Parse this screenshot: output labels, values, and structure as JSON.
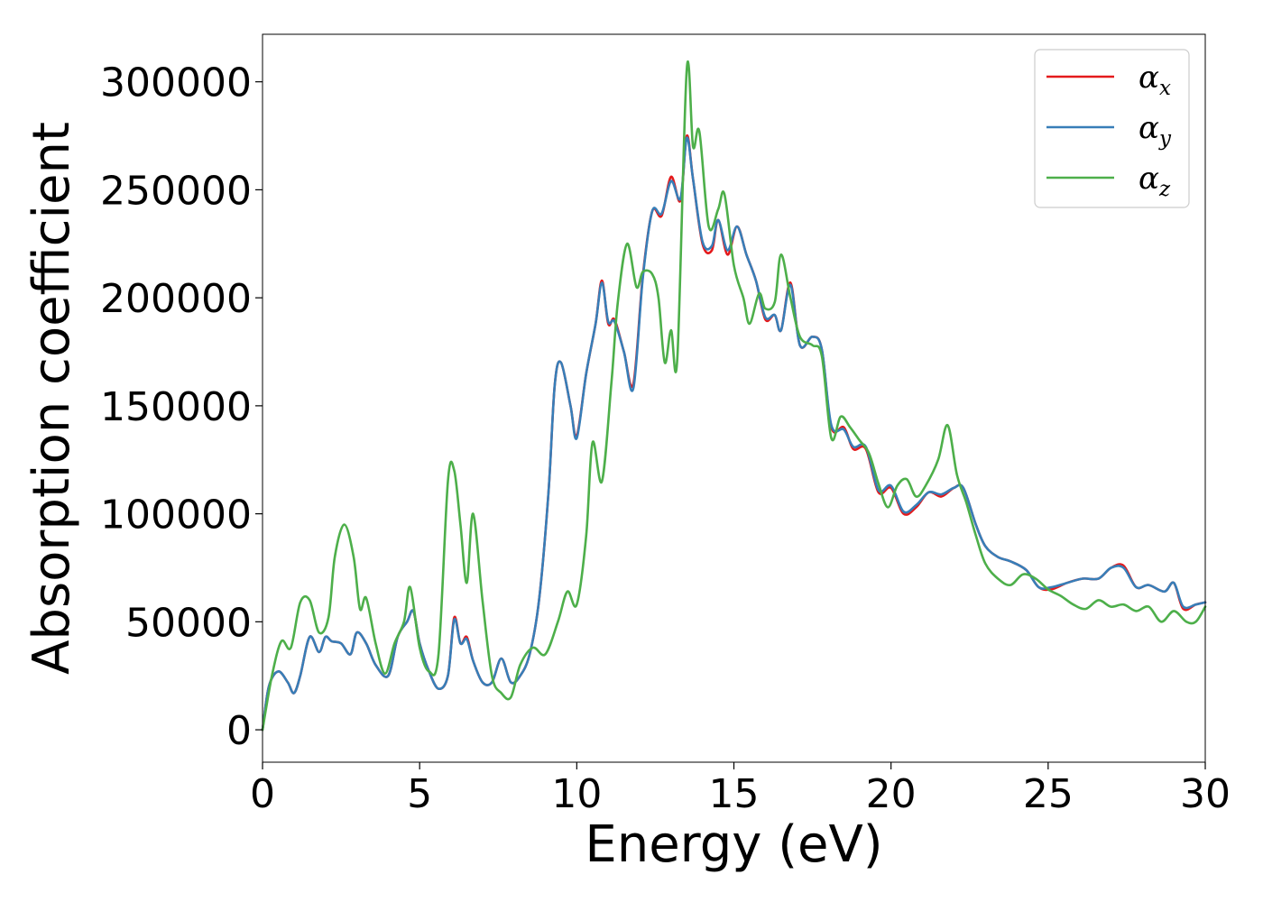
{
  "chart_data": {
    "type": "line",
    "xlabel": "Energy (eV)",
    "ylabel": "Absorption coefficient",
    "xlim": [
      0,
      30
    ],
    "ylim": [
      -15000,
      322000
    ],
    "x_ticks": [
      0,
      5,
      10,
      15,
      20,
      25,
      30
    ],
    "y_ticks": [
      0,
      50000,
      100000,
      150000,
      200000,
      250000,
      300000
    ],
    "grid": false,
    "legend_position": "top-right",
    "series": [
      {
        "name": "αx",
        "label_base": "α",
        "label_sub": "x",
        "color": "#e41a1c",
        "x": [
          0,
          0.2,
          0.5,
          0.8,
          1.0,
          1.2,
          1.5,
          1.8,
          2.0,
          2.2,
          2.5,
          2.8,
          3.0,
          3.3,
          3.6,
          4.0,
          4.3,
          4.6,
          4.8,
          5.0,
          5.3,
          5.6,
          5.9,
          6.1,
          6.3,
          6.5,
          6.7,
          7.0,
          7.3,
          7.6,
          7.9,
          8.2,
          8.5,
          8.8,
          9.1,
          9.3,
          9.5,
          9.8,
          10.0,
          10.3,
          10.6,
          10.8,
          11.0,
          11.2,
          11.5,
          11.8,
          12.1,
          12.4,
          12.7,
          13.0,
          13.3,
          13.5,
          13.7,
          14.0,
          14.3,
          14.5,
          14.8,
          15.1,
          15.4,
          15.7,
          16.0,
          16.3,
          16.5,
          16.8,
          17.1,
          17.5,
          17.8,
          18.1,
          18.5,
          18.8,
          19.2,
          19.6,
          20.0,
          20.4,
          20.8,
          21.2,
          21.6,
          22.0,
          22.3,
          22.7,
          23.0,
          23.4,
          23.8,
          24.3,
          24.7,
          25.1,
          25.6,
          26.1,
          26.6,
          27.0,
          27.4,
          27.8,
          28.2,
          28.7,
          29.0,
          29.3,
          29.7,
          30.0
        ],
        "values": [
          0,
          20000,
          27000,
          22000,
          17000,
          25000,
          43000,
          36000,
          43000,
          41000,
          40000,
          35000,
          45000,
          40000,
          30000,
          25000,
          43000,
          50000,
          55000,
          40000,
          27000,
          19000,
          25000,
          52000,
          40000,
          43000,
          32000,
          22000,
          22000,
          33000,
          22000,
          25000,
          35000,
          60000,
          110000,
          160000,
          170000,
          150000,
          136000,
          165000,
          188000,
          208000,
          188000,
          190000,
          175000,
          160000,
          210000,
          240000,
          238000,
          256000,
          245000,
          275000,
          255000,
          225000,
          222000,
          236000,
          220000,
          233000,
          220000,
          208000,
          190000,
          192000,
          185000,
          207000,
          178000,
          182000,
          176000,
          140000,
          140000,
          130000,
          130000,
          110000,
          112000,
          100000,
          103000,
          110000,
          108000,
          112000,
          112000,
          95000,
          85000,
          80000,
          78000,
          74000,
          66000,
          65000,
          68000,
          70000,
          70000,
          75000,
          76000,
          66000,
          67000,
          64000,
          68000,
          56000,
          58000,
          59000
        ]
      },
      {
        "name": "αy",
        "label_base": "α",
        "label_sub": "y",
        "color": "#377eb8",
        "x": [
          0,
          0.2,
          0.5,
          0.8,
          1.0,
          1.2,
          1.5,
          1.8,
          2.0,
          2.2,
          2.5,
          2.8,
          3.0,
          3.3,
          3.6,
          4.0,
          4.3,
          4.6,
          4.8,
          5.0,
          5.3,
          5.6,
          5.9,
          6.1,
          6.3,
          6.5,
          6.7,
          7.0,
          7.3,
          7.6,
          7.9,
          8.2,
          8.5,
          8.8,
          9.1,
          9.3,
          9.5,
          9.8,
          10.0,
          10.3,
          10.6,
          10.8,
          11.0,
          11.2,
          11.5,
          11.8,
          12.1,
          12.4,
          12.7,
          13.0,
          13.3,
          13.5,
          13.7,
          14.0,
          14.3,
          14.5,
          14.8,
          15.1,
          15.4,
          15.7,
          16.0,
          16.3,
          16.5,
          16.8,
          17.1,
          17.5,
          17.8,
          18.1,
          18.5,
          18.8,
          19.2,
          19.6,
          20.0,
          20.4,
          20.8,
          21.2,
          21.6,
          22.0,
          22.3,
          22.7,
          23.0,
          23.4,
          23.8,
          24.3,
          24.7,
          25.1,
          25.6,
          26.1,
          26.6,
          27.0,
          27.4,
          27.8,
          28.2,
          28.7,
          29.0,
          29.3,
          29.7,
          30.0
        ],
        "values": [
          0,
          20000,
          27000,
          22000,
          17000,
          25000,
          43000,
          36000,
          43000,
          41000,
          40000,
          35000,
          45000,
          40000,
          30000,
          25000,
          43000,
          50000,
          55000,
          40000,
          27000,
          19000,
          25000,
          51000,
          40000,
          42000,
          32000,
          22000,
          22000,
          33000,
          22000,
          25000,
          35000,
          60000,
          110000,
          160000,
          170000,
          150000,
          135000,
          165000,
          188000,
          207000,
          189000,
          189000,
          175000,
          158000,
          209000,
          240000,
          239000,
          254000,
          246000,
          274000,
          255000,
          226000,
          224000,
          236000,
          222000,
          233000,
          220000,
          208000,
          191000,
          192000,
          185000,
          206000,
          178000,
          182000,
          176000,
          141000,
          139000,
          131000,
          131000,
          111000,
          113000,
          101000,
          104000,
          110000,
          109000,
          112000,
          112000,
          95000,
          85000,
          80000,
          78000,
          74000,
          66000,
          66000,
          68000,
          70000,
          70000,
          75000,
          75000,
          66000,
          67000,
          64000,
          68000,
          57000,
          58000,
          59000
        ]
      },
      {
        "name": "αz",
        "label_base": "α",
        "label_sub": "z",
        "color": "#4daf4a",
        "x": [
          0,
          0.3,
          0.6,
          0.9,
          1.2,
          1.5,
          1.8,
          2.1,
          2.3,
          2.6,
          2.9,
          3.1,
          3.3,
          3.6,
          3.9,
          4.2,
          4.5,
          4.7,
          5.0,
          5.3,
          5.6,
          5.9,
          6.1,
          6.3,
          6.5,
          6.7,
          7.0,
          7.3,
          7.6,
          7.9,
          8.2,
          8.6,
          9.0,
          9.4,
          9.7,
          10.0,
          10.3,
          10.5,
          10.8,
          11.1,
          11.3,
          11.6,
          11.9,
          12.1,
          12.4,
          12.6,
          12.8,
          13.0,
          13.2,
          13.5,
          13.7,
          13.9,
          14.2,
          14.5,
          14.7,
          15.0,
          15.3,
          15.5,
          15.8,
          16.0,
          16.3,
          16.5,
          16.8,
          17.1,
          17.5,
          17.8,
          18.1,
          18.4,
          18.7,
          19.0,
          19.3,
          19.6,
          19.9,
          20.2,
          20.5,
          20.8,
          21.1,
          21.5,
          21.8,
          22.1,
          22.4,
          22.7,
          23.0,
          23.4,
          23.8,
          24.2,
          24.6,
          25.0,
          25.4,
          25.8,
          26.2,
          26.6,
          27.0,
          27.4,
          27.8,
          28.2,
          28.6,
          29.0,
          29.4,
          29.7,
          30.0
        ],
        "values": [
          0,
          25000,
          41000,
          38000,
          59000,
          60000,
          45000,
          52000,
          80000,
          95000,
          80000,
          56000,
          61000,
          40000,
          26000,
          40000,
          50000,
          66000,
          38000,
          27000,
          35000,
          115000,
          120000,
          95000,
          68000,
          100000,
          60000,
          25000,
          17000,
          15000,
          30000,
          38000,
          35000,
          50000,
          64000,
          58000,
          90000,
          133000,
          115000,
          160000,
          197000,
          225000,
          205000,
          212000,
          211000,
          200000,
          170000,
          185000,
          172000,
          306000,
          270000,
          277000,
          233000,
          241000,
          248000,
          215000,
          200000,
          188000,
          202000,
          195000,
          198000,
          220000,
          200000,
          182000,
          178000,
          173000,
          135000,
          145000,
          140000,
          134000,
          128000,
          114000,
          103000,
          113000,
          116000,
          108000,
          113000,
          125000,
          141000,
          118000,
          105000,
          90000,
          77000,
          70000,
          67000,
          72000,
          70000,
          65000,
          62000,
          58000,
          56000,
          60000,
          57000,
          58000,
          55000,
          57000,
          50000,
          55000,
          50000,
          50000,
          57000
        ]
      }
    ]
  }
}
